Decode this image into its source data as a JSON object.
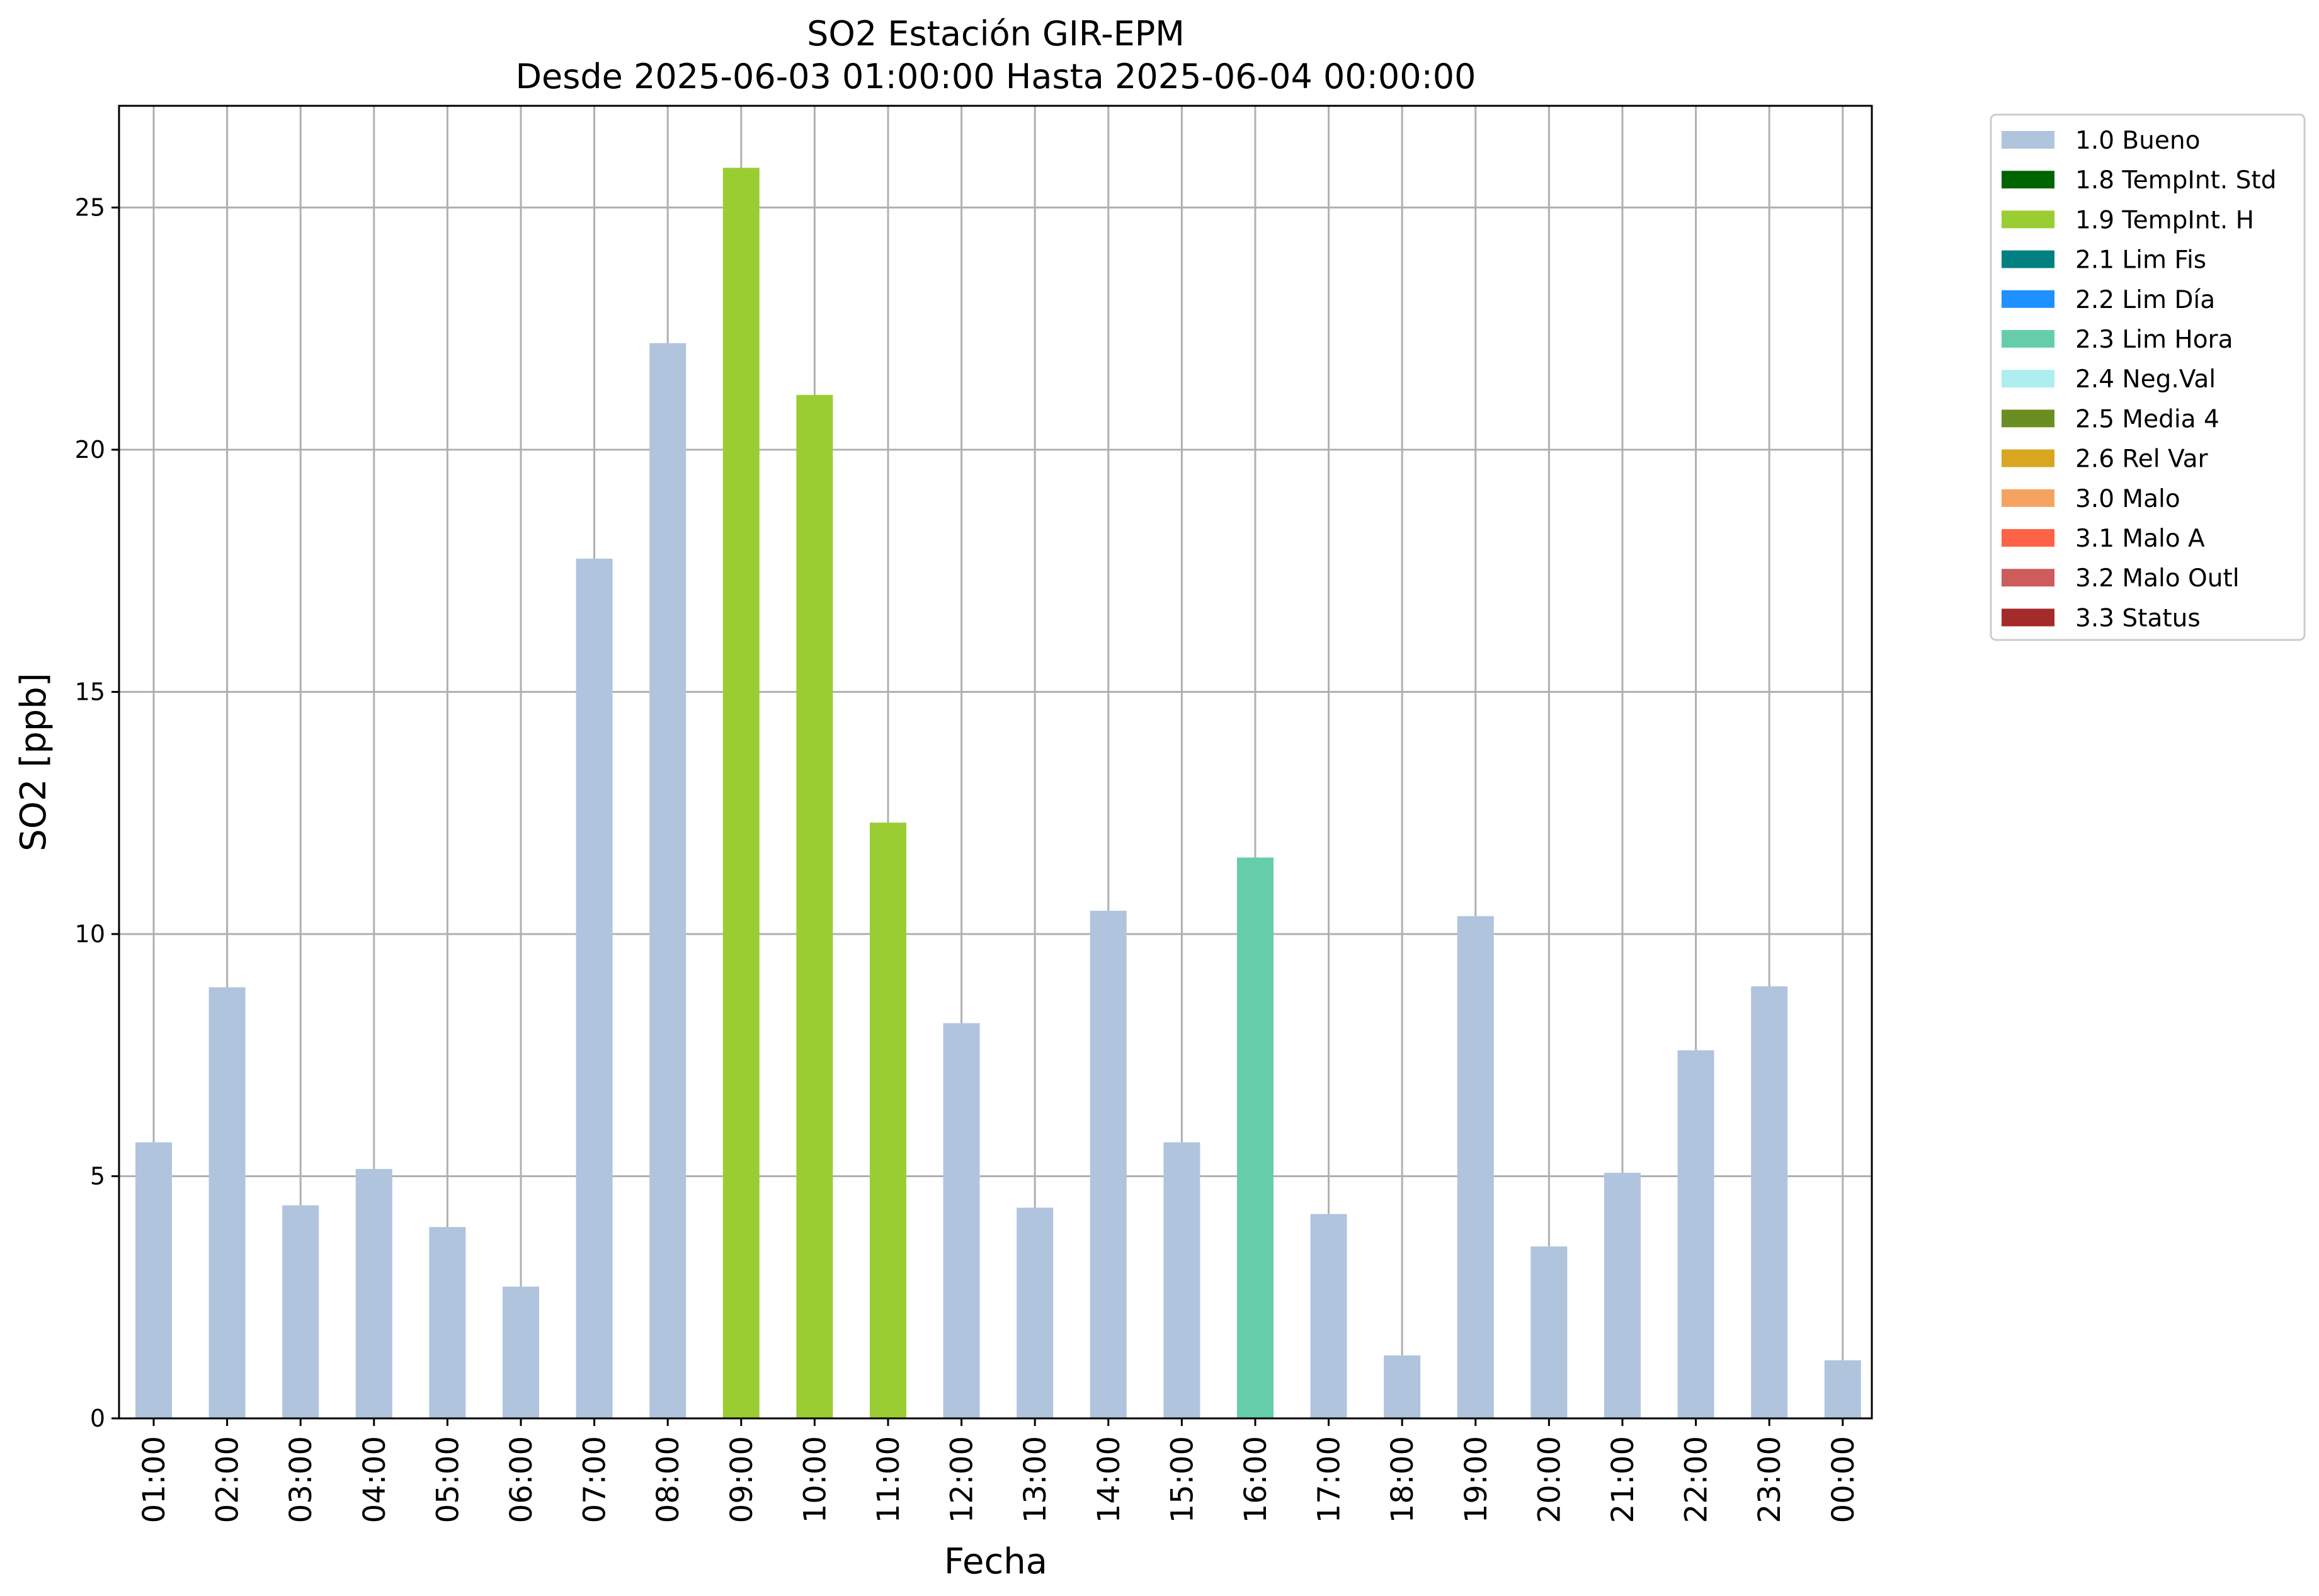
{
  "chart_data": {
    "type": "bar",
    "title": "SO2 Estación GIR-EPM",
    "subtitle": "Desde 2025-06-03 01:00:00 Hasta 2025-06-04 00:00:00",
    "xlabel": "Fecha",
    "ylabel": "SO2 [ppb]",
    "ylim": [
      0,
      27.1
    ],
    "yticks": [
      0,
      5,
      10,
      15,
      20,
      25
    ],
    "grid": true,
    "legend_position": "outside top-right",
    "categories": [
      "01:00",
      "02:00",
      "03:00",
      "04:00",
      "05:00",
      "06:00",
      "07:00",
      "08:00",
      "09:00",
      "10:00",
      "11:00",
      "12:00",
      "13:00",
      "14:00",
      "15:00",
      "16:00",
      "17:00",
      "18:00",
      "19:00",
      "20:00",
      "21:00",
      "22:00",
      "23:00",
      "00:00"
    ],
    "values": [
      5.7,
      8.9,
      4.4,
      5.15,
      3.95,
      2.72,
      17.75,
      22.2,
      25.82,
      21.13,
      12.3,
      8.16,
      4.35,
      10.48,
      5.7,
      11.58,
      4.22,
      1.3,
      10.37,
      3.55,
      5.07,
      7.6,
      8.92,
      1.2
    ],
    "flags": [
      "1.0 Bueno",
      "1.0 Bueno",
      "1.0 Bueno",
      "1.0 Bueno",
      "1.0 Bueno",
      "1.0 Bueno",
      "1.0 Bueno",
      "1.0 Bueno",
      "1.9 TempInt. H",
      "1.9 TempInt. H",
      "1.9 TempInt. H",
      "1.0 Bueno",
      "1.0 Bueno",
      "1.0 Bueno",
      "1.0 Bueno",
      "2.3 Lim Hora",
      "1.0 Bueno",
      "1.0 Bueno",
      "1.0 Bueno",
      "1.0 Bueno",
      "1.0 Bueno",
      "1.0 Bueno",
      "1.0 Bueno",
      "1.0 Bueno"
    ],
    "legend": [
      {
        "label": "1.0 Bueno",
        "color": "#b0c4de"
      },
      {
        "label": "1.8 TempInt. Std",
        "color": "#006400"
      },
      {
        "label": "1.9 TempInt. H",
        "color": "#9acd32"
      },
      {
        "label": "2.1 Lim Fis",
        "color": "#008080"
      },
      {
        "label": "2.2 Lim Día",
        "color": "#1e90ff"
      },
      {
        "label": "2.3 Lim Hora",
        "color": "#66cdaa"
      },
      {
        "label": "2.4 Neg.Val",
        "color": "#afeeee"
      },
      {
        "label": "2.5 Media 4",
        "color": "#6b8e23"
      },
      {
        "label": "2.6 Rel Var",
        "color": "#daa520"
      },
      {
        "label": "3.0 Malo",
        "color": "#f4a460"
      },
      {
        "label": "3.1 Malo A",
        "color": "#ff6347"
      },
      {
        "label": "3.2 Malo Outl",
        "color": "#cd5c5c"
      },
      {
        "label": "3.3 Status",
        "color": "#a52a2a"
      }
    ]
  }
}
